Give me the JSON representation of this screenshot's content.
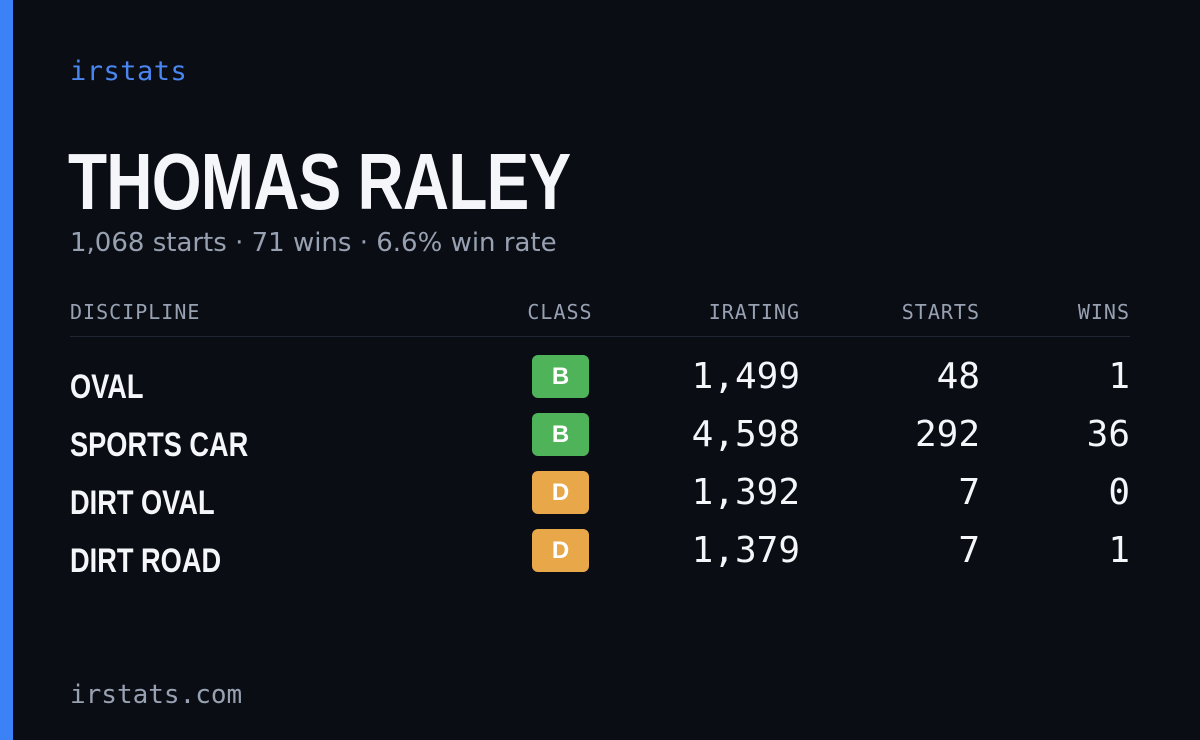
{
  "brand": {
    "name": "irstats",
    "footer_url": "irstats.com",
    "accent_color": "#3b82f6"
  },
  "driver": {
    "name": "THOMAS RALEY",
    "summary": "1,068 starts · 71 wins · 6.6% win rate"
  },
  "table": {
    "headers": {
      "discipline": "DISCIPLINE",
      "class": "CLASS",
      "irating": "IRATING",
      "starts": "STARTS",
      "wins": "WINS"
    },
    "rows": [
      {
        "discipline": "OVAL",
        "class": "B",
        "class_color": "#4fb35a",
        "irating": "1,499",
        "starts": "48",
        "wins": "1"
      },
      {
        "discipline": "SPORTS CAR",
        "class": "B",
        "class_color": "#4fb35a",
        "irating": "4,598",
        "starts": "292",
        "wins": "36"
      },
      {
        "discipline": "DIRT OVAL",
        "class": "D",
        "class_color": "#e8a84a",
        "irating": "1,392",
        "starts": "7",
        "wins": "0"
      },
      {
        "discipline": "DIRT ROAD",
        "class": "D",
        "class_color": "#e8a84a",
        "irating": "1,379",
        "starts": "7",
        "wins": "1"
      }
    ]
  }
}
